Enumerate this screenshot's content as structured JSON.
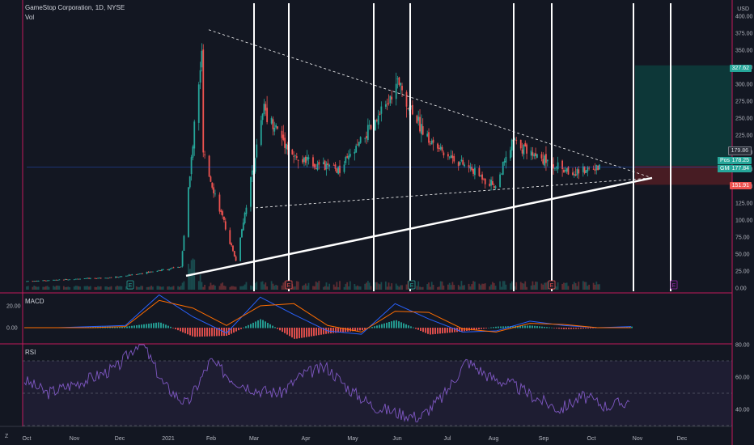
{
  "header": {
    "symbol_line": "GameStop Corporation, 1D, NYSE",
    "volume_label": "Vol",
    "macd_label": "MACD",
    "rsi_label": "RSI",
    "currency": "USD",
    "zoom_label": "Z"
  },
  "price_labels": {
    "target": "327.62",
    "resistance": "179.86",
    "post_label": "Post",
    "post_value": "178.25",
    "ticker": "GME",
    "last_value": "177.84",
    "stop": "151.91"
  },
  "colors": {
    "background": "#131722",
    "up": "#26a69a",
    "down": "#ef5350",
    "rsi_line": "#7e57c2",
    "macd_line": "#2962ff",
    "signal_line": "#ff6d00",
    "target_zone": "#0d3b3b",
    "stop_zone": "#4a1c24",
    "pane_border": "#c2185b"
  },
  "chart_data": [
    {
      "type": "candlestick",
      "title": "GameStop Corporation, 1D, NYSE",
      "x_ticks": [
        "Oct",
        "Nov",
        "Dec",
        "2021",
        "Feb",
        "Mar",
        "Apr",
        "May",
        "Jun",
        "Jul",
        "Aug",
        "Sep",
        "Oct",
        "Nov",
        "Dec"
      ],
      "y_ticks": [
        "400.00",
        "375.00",
        "350.00",
        "325.00",
        "300.00",
        "275.00",
        "250.00",
        "225.00",
        "200.00",
        "175.00",
        "150.00",
        "125.00",
        "100.00",
        "75.00",
        "50.00",
        "25.00",
        "0.00"
      ],
      "ylim": [
        0,
        405
      ],
      "earnings_markers": [
        "E",
        "E",
        "E",
        "E",
        "E"
      ],
      "key_points": [
        {
          "date": "2020-10-01",
          "close": 10
        },
        {
          "date": "2020-12-01",
          "close": 16
        },
        {
          "date": "2021-01-13",
          "close": 31
        },
        {
          "date": "2021-01-27",
          "close": 347
        },
        {
          "date": "2021-01-28",
          "close": 193
        },
        {
          "date": "2021-02-19",
          "close": 40
        },
        {
          "date": "2021-03-10",
          "close": 265
        },
        {
          "date": "2021-03-31",
          "close": 190
        },
        {
          "date": "2021-04-30",
          "close": 173
        },
        {
          "date": "2021-05-28",
          "close": 255
        },
        {
          "date": "2021-06-08",
          "close": 300
        },
        {
          "date": "2021-06-30",
          "close": 214
        },
        {
          "date": "2021-08-13",
          "close": 150
        },
        {
          "date": "2021-08-25",
          "close": 215
        },
        {
          "date": "2021-10-01",
          "close": 170
        },
        {
          "date": "2021-10-22",
          "close": 178
        }
      ]
    },
    {
      "type": "line",
      "title": "MACD",
      "y_ticks": [
        "20.00",
        "0.00"
      ],
      "series": [
        {
          "name": "MACD",
          "values": [
            0,
            0,
            1,
            2,
            30,
            10,
            -5,
            28,
            12,
            -3,
            -6,
            22,
            8,
            -4,
            -3,
            6,
            2,
            0,
            1
          ]
        },
        {
          "name": "Signal",
          "values": [
            0,
            0,
            0,
            1,
            25,
            18,
            2,
            20,
            22,
            2,
            -4,
            15,
            14,
            -1,
            -4,
            4,
            3,
            0,
            0
          ]
        }
      ]
    },
    {
      "type": "line",
      "title": "RSI",
      "y_ticks": [
        "80.00",
        "60.00",
        "40.00"
      ],
      "ylim": [
        30,
        80
      ],
      "bands": [
        70,
        50,
        30
      ],
      "series": [
        {
          "name": "RSI",
          "values": [
            58,
            50,
            55,
            60,
            66,
            83,
            55,
            43,
            70,
            58,
            52,
            50,
            62,
            66,
            52,
            42,
            38,
            35,
            48,
            70,
            60,
            55,
            47,
            40,
            48,
            42,
            45
          ]
        }
      ]
    }
  ]
}
